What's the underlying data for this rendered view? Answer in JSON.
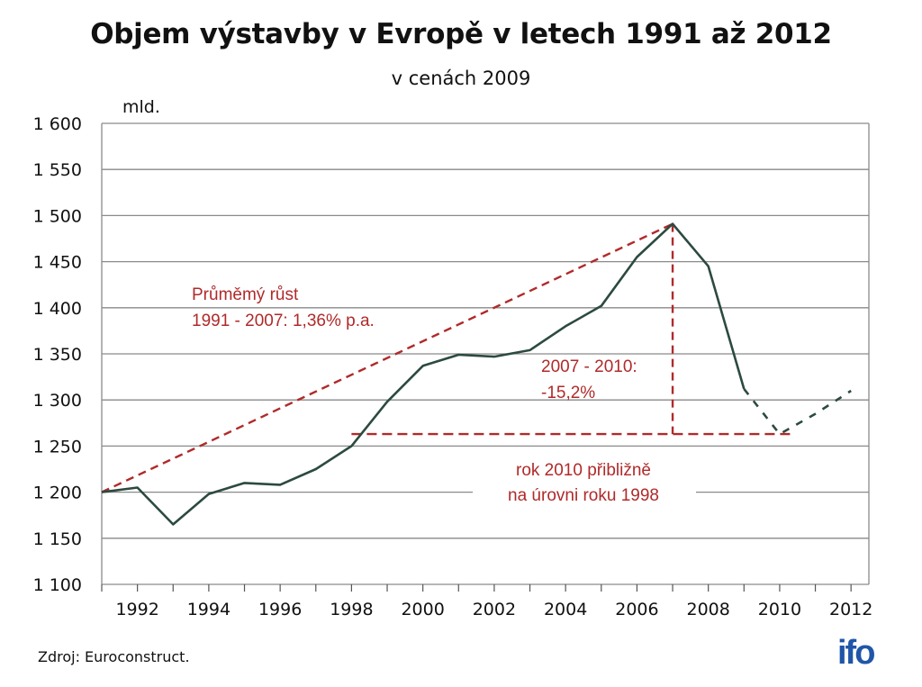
{
  "chart_data": {
    "type": "line",
    "title": "Objem výstavby v Evropě v letech 1991 až 2012",
    "subtitle": "v cenách 2009",
    "ylabel": "mld.",
    "ylim": [
      1100,
      1600
    ],
    "yticks": [
      1100,
      1150,
      1200,
      1250,
      1300,
      1350,
      1400,
      1450,
      1500,
      1550,
      1600
    ],
    "ytick_labels": [
      "1 100",
      "1 150",
      "1 200",
      "1 250",
      "1 300",
      "1 350",
      "1 400",
      "1 450",
      "1 500",
      "1 550",
      "1 600"
    ],
    "xlim": [
      1991,
      2012.5
    ],
    "xticks": [
      1992,
      1994,
      1996,
      1998,
      2000,
      2002,
      2004,
      2006,
      2008,
      2010,
      2012
    ],
    "grid": true,
    "series": [
      {
        "style": "solid",
        "color": "#2c4a40",
        "x": [
          1991,
          1992,
          1993,
          1994,
          1995,
          1996,
          1997,
          1998,
          1999,
          2000,
          2001,
          2002,
          2003,
          2004,
          2005,
          2006,
          2007,
          2008,
          2009
        ],
        "y": [
          1200,
          1205,
          1165,
          1198,
          1210,
          1208,
          1225,
          1250,
          1298,
          1337,
          1349,
          1347,
          1354,
          1380,
          1402,
          1455,
          1491,
          1445,
          1312
        ]
      },
      {
        "style": "dashed",
        "color": "#2c4a40",
        "x": [
          2009,
          2010,
          2011,
          2012
        ],
        "y": [
          1312,
          1263,
          1285,
          1310
        ]
      }
    ],
    "annotations": {
      "growth_line": {
        "from": [
          1991,
          1200
        ],
        "to": [
          2007,
          1491
        ],
        "color": "#b02a2a"
      },
      "drop_vertical": {
        "x": 2007,
        "from_y": 1491,
        "to_y": 1263,
        "color": "#b02a2a"
      },
      "level_line": {
        "from_x": 1998,
        "to_x": 2010.4,
        "y": 1263,
        "color": "#b02a2a"
      },
      "growth_text": [
        "Průměmý růst",
        "1991 - 2007:  1,36% p.a."
      ],
      "drop_text": [
        "2007 - 2010:",
        "-15,2%"
      ],
      "level_text": [
        "rok 2010 přibližně",
        "na úrovni roku 1998"
      ]
    }
  },
  "source": "Zdroj: Euroconstruct.",
  "logo": "ifo",
  "colors": {
    "line": "#2c4a40",
    "annotation": "#b02a2a",
    "grid": "#8a8a8a",
    "logo": "#1f56a8"
  }
}
